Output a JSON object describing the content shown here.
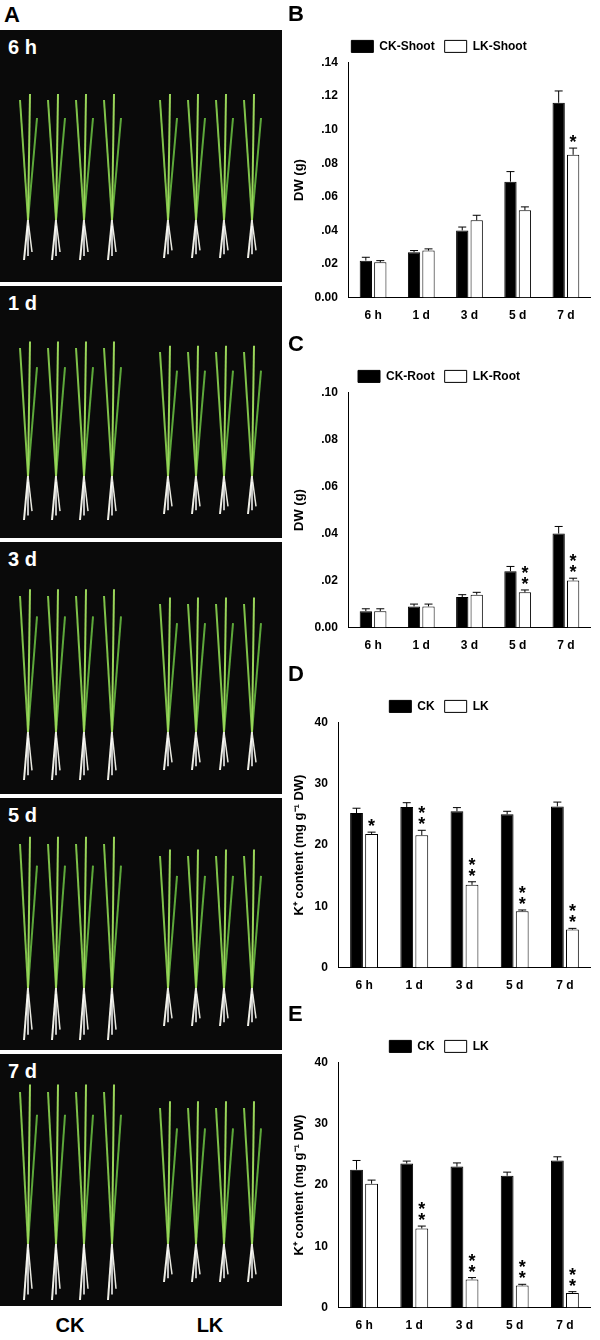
{
  "panel_a": {
    "label": "A",
    "rows": [
      "6 h",
      "1 d",
      "3 d",
      "5 d",
      "7 d"
    ],
    "columns": [
      "CK",
      "LK"
    ]
  },
  "chart_data": [
    {
      "type": "bar",
      "title": "B",
      "y_label": "DW (g)",
      "categories": [
        "6 h",
        "1 d",
        "3 d",
        "5 d",
        "7 d"
      ],
      "series": [
        {
          "name": "CK-Shoot",
          "color": "#000000",
          "values": [
            0.022,
            0.027,
            0.04,
            0.069,
            0.116
          ],
          "errors": [
            0.002,
            0.001,
            0.002,
            0.006,
            0.007
          ],
          "annotations": [
            null,
            null,
            null,
            null,
            null
          ]
        },
        {
          "name": "LK-Shoot",
          "color": "#ffffff",
          "values": [
            0.021,
            0.028,
            0.046,
            0.052,
            0.085
          ],
          "errors": [
            0.001,
            0.001,
            0.003,
            0.002,
            0.004
          ],
          "annotations": [
            null,
            null,
            null,
            null,
            "*"
          ]
        }
      ],
      "ylim": [
        0,
        0.14
      ],
      "yticks": [
        {
          "value": 0,
          "label": "0.00"
        },
        {
          "value": 0.02,
          "label": ".02"
        },
        {
          "value": 0.04,
          "label": ".04"
        },
        {
          "value": 0.06,
          "label": ".06"
        },
        {
          "value": 0.08,
          "label": ".08"
        },
        {
          "value": 0.1,
          "label": ".10"
        },
        {
          "value": 0.12,
          "label": ".12"
        },
        {
          "value": 0.14,
          "label": ".14"
        }
      ],
      "grid": false,
      "legend": "top"
    },
    {
      "type": "bar",
      "title": "C",
      "y_label": "DW (g)",
      "categories": [
        "6 h",
        "1 d",
        "3 d",
        "5 d",
        "7 d"
      ],
      "series": [
        {
          "name": "CK-Root",
          "color": "#000000",
          "values": [
            0.007,
            0.009,
            0.013,
            0.024,
            0.04
          ],
          "errors": [
            0.001,
            0.001,
            0.001,
            0.002,
            0.003
          ],
          "annotations": [
            null,
            null,
            null,
            null,
            null
          ]
        },
        {
          "name": "LK-Root",
          "color": "#ffffff",
          "values": [
            0.007,
            0.009,
            0.014,
            0.015,
            0.02
          ],
          "errors": [
            0.001,
            0.001,
            0.001,
            0.001,
            0.001
          ],
          "annotations": [
            null,
            null,
            null,
            "**",
            "**"
          ]
        }
      ],
      "ylim": [
        0,
        0.1
      ],
      "yticks": [
        {
          "value": 0,
          "label": "0.00"
        },
        {
          "value": 0.02,
          "label": ".02"
        },
        {
          "value": 0.04,
          "label": ".04"
        },
        {
          "value": 0.06,
          "label": ".06"
        },
        {
          "value": 0.08,
          "label": ".08"
        },
        {
          "value": 0.1,
          "label": ".10"
        }
      ],
      "grid": false,
      "legend": "top"
    },
    {
      "type": "bar",
      "title": "D",
      "y_label": "K⁺ content (mg g⁻¹ DW)",
      "categories": [
        "6 h",
        "1 d",
        "3 d",
        "5 d",
        "7 d"
      ],
      "series": [
        {
          "name": "CK",
          "color": "#000000",
          "values": [
            25.2,
            26.2,
            25.5,
            25.0,
            26.3
          ],
          "errors": [
            0.8,
            0.7,
            0.6,
            0.5,
            0.7
          ],
          "annotations": [
            null,
            null,
            null,
            null,
            null
          ]
        },
        {
          "name": "LK",
          "color": "#ffffff",
          "values": [
            21.8,
            21.6,
            13.5,
            9.2,
            6.2
          ],
          "errors": [
            0.3,
            0.8,
            0.5,
            0.2,
            0.2
          ],
          "annotations": [
            "*",
            "**",
            "**",
            "**",
            "**"
          ]
        }
      ],
      "ylim": [
        0,
        40
      ],
      "yticks": [
        0,
        10,
        20,
        30,
        40
      ],
      "grid": false,
      "legend": "top"
    },
    {
      "type": "bar",
      "title": "E",
      "y_label": "K⁺ content (mg g⁻¹ DW)",
      "categories": [
        "6 h",
        "1 d",
        "3 d",
        "5 d",
        "7 d"
      ],
      "series": [
        {
          "name": "CK",
          "color": "#000000",
          "values": [
            22.5,
            23.5,
            23.0,
            21.5,
            24.0
          ],
          "errors": [
            1.5,
            0.4,
            0.6,
            0.6,
            0.6
          ],
          "annotations": [
            null,
            null,
            null,
            null,
            null
          ]
        },
        {
          "name": "LK",
          "color": "#ffffff",
          "values": [
            20.2,
            12.9,
            4.6,
            3.6,
            2.4
          ],
          "errors": [
            0.6,
            0.4,
            0.3,
            0.2,
            0.2
          ],
          "annotations": [
            null,
            "**",
            "**",
            "**",
            "**"
          ]
        }
      ],
      "ylim": [
        0,
        40
      ],
      "yticks": [
        0,
        10,
        20,
        30,
        40
      ],
      "grid": false,
      "legend": "top"
    }
  ]
}
